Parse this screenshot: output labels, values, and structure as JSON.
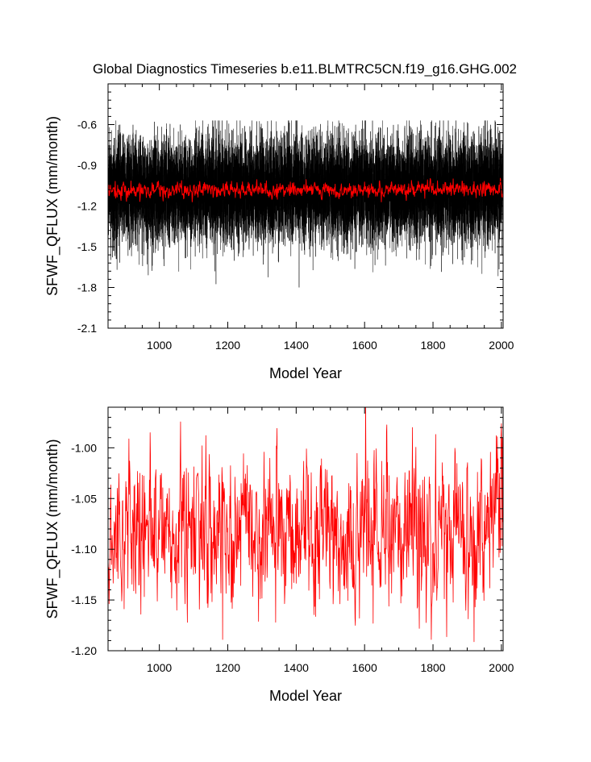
{
  "title": "Global Diagnostics Timeseries b.e11.BLMTRC5CN.f19_g16.GHG.002",
  "chart_data": [
    {
      "type": "line",
      "xlabel": "Model Year",
      "ylabel": "SFWF_QFLUX (mm/month)",
      "xlim": [
        850,
        2005
      ],
      "ylim": [
        -2.1,
        -0.3
      ],
      "xticks": [
        1000,
        1200,
        1400,
        1600,
        1800,
        2000
      ],
      "xtick_labels": [
        "1000",
        "1200",
        "1400",
        "1600",
        "1800",
        "2000"
      ],
      "yticks": [
        -2.1,
        -1.8,
        -1.5,
        -1.2,
        -0.9,
        -0.6
      ],
      "ytick_labels": [
        "-2.1",
        "-1.8",
        "-1.5",
        "-1.2",
        "-0.9",
        "-0.6"
      ],
      "grid": false,
      "series": [
        {
          "style": "monthly",
          "color": "#000000",
          "x_start": 850,
          "x_end": 2005,
          "envelope_mean": -1.08,
          "envelope_typical_range": [
            -1.45,
            -0.7
          ],
          "envelope_extremes": [
            -1.8,
            -0.57
          ]
        },
        {
          "style": "annual",
          "color": "#ff0000",
          "x_start": 850,
          "x_end": 2005,
          "mean": -1.08,
          "typical_range": [
            -1.13,
            -1.02
          ]
        }
      ]
    },
    {
      "type": "line",
      "xlabel": "Model Year",
      "ylabel": "SFWF_QFLUX (mm/month)",
      "xlim": [
        850,
        2005
      ],
      "ylim": [
        -1.2,
        -0.96
      ],
      "xticks": [
        1000,
        1200,
        1400,
        1600,
        1800,
        2000
      ],
      "xtick_labels": [
        "1000",
        "1200",
        "1400",
        "1600",
        "1800",
        "2000"
      ],
      "yticks": [
        -1.2,
        -1.15,
        -1.1,
        -1.05,
        -1.0
      ],
      "ytick_labels": [
        "-1.20",
        "-1.15",
        "-1.10",
        "-1.05",
        "-1.00"
      ],
      "grid": false,
      "series": [
        {
          "style": "annual",
          "color": "#ff0000",
          "x_start": 850,
          "x_end": 2005,
          "mean": -1.085,
          "typical_range": [
            -1.14,
            -1.02
          ],
          "notable_points": [
            {
              "x": 1185,
              "y": -1.189
            },
            {
              "x": 1125,
              "y": -0.998
            },
            {
              "x": 1340,
              "y": -1.172
            },
            {
              "x": 1740,
              "y": -0.98
            },
            {
              "x": 1760,
              "y": -1.178
            },
            {
              "x": 1985,
              "y": -0.988
            },
            {
              "x": 2003,
              "y": -0.99
            }
          ],
          "end_trend": {
            "x": 1960,
            "y": -1.06,
            "x_end": 2005,
            "y_end": -1.03
          }
        }
      ]
    }
  ]
}
